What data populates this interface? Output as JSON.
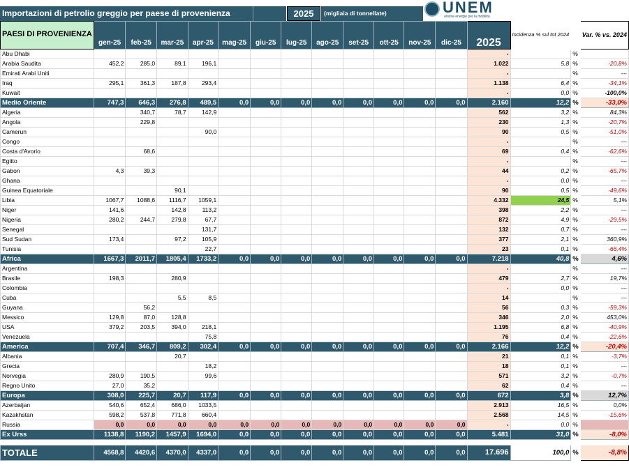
{
  "title": "Importazioni di petrolio greggio per paese di provenienza",
  "year": "2025",
  "unit": "(migliaia di tonnellate)",
  "logo": {
    "text": "UNEM",
    "sub": "unione energie per la mobilità"
  },
  "headers": {
    "country": "PAESI DI PROVENIENZA",
    "months": [
      "gen-25",
      "feb-25",
      "mar-25",
      "apr-25",
      "mag-25",
      "giu-25",
      "lug-25",
      "ago-25",
      "set-25",
      "ott-25",
      "nov-25",
      "dic-25"
    ],
    "total": "2025",
    "incidence": "Incidenza % sul tot 2024",
    "variation": "Var. % vs. 2024"
  },
  "pct_sign": "%",
  "groups": [
    {
      "rows": [
        {
          "name": "Abu Dhabi",
          "m": [
            "",
            "",
            "",
            "",
            "",
            "",
            "",
            "",
            "",
            "",
            "",
            ""
          ],
          "tot": "-",
          "inc": "",
          "var": ""
        },
        {
          "name": "Arabia Saudita",
          "m": [
            "452,2",
            "285,0",
            "89,1",
            "196,1",
            "",
            "",
            "",
            "",
            "",
            "",
            "",
            ""
          ],
          "tot": "1.022",
          "inc": "5,8",
          "var": "-20,8%"
        },
        {
          "name": "Emirati Arabi Uniti",
          "m": [
            "",
            "",
            "",
            "",
            "",
            "",
            "",
            "",
            "",
            "",
            "",
            ""
          ],
          "tot": "-",
          "inc": "",
          "var": "---"
        },
        {
          "name": "Iraq",
          "m": [
            "295,1",
            "361,3",
            "187,8",
            "293,4",
            "",
            "",
            "",
            "",
            "",
            "",
            "",
            ""
          ],
          "tot": "1.138",
          "inc": "6,4",
          "var": "-34,1%"
        },
        {
          "name": "Kuwait",
          "m": [
            "",
            "",
            "",
            "",
            "",
            "",
            "",
            "",
            "",
            "",
            "",
            ""
          ],
          "tot": "-",
          "inc": "0,0",
          "var": "-100,0%"
        }
      ],
      "total": {
        "name": "Medio Oriente",
        "m": [
          "747,3",
          "646,3",
          "276,8",
          "489,5",
          "0,0",
          "0,0",
          "0,0",
          "0,0",
          "0,0",
          "0,0",
          "0,0",
          "0,0"
        ],
        "tot": "2.160",
        "inc": "12,2",
        "var": "-33,0%"
      }
    },
    {
      "rows": [
        {
          "name": "Algeria",
          "m": [
            "",
            "340,7",
            "78,7",
            "142,9",
            "",
            "",
            "",
            "",
            "",
            "",
            "",
            ""
          ],
          "tot": "562",
          "inc": "3,2",
          "var": "84,3%"
        },
        {
          "name": "Angola",
          "m": [
            "",
            "229,8",
            "",
            "",
            "",
            "",
            "",
            "",
            "",
            "",
            "",
            ""
          ],
          "tot": "230",
          "inc": "1,3",
          "var": "-20,7%"
        },
        {
          "name": "Camerun",
          "m": [
            "",
            "",
            "",
            "90,0",
            "",
            "",
            "",
            "",
            "",
            "",
            "",
            ""
          ],
          "tot": "90",
          "inc": "0,5",
          "var": "-51,0%"
        },
        {
          "name": "Congo",
          "m": [
            "",
            "",
            "",
            "",
            "",
            "",
            "",
            "",
            "",
            "",
            "",
            ""
          ],
          "tot": "-",
          "inc": "",
          "var": "---"
        },
        {
          "name": "Costa d'Avorio",
          "m": [
            "",
            "68,6",
            "",
            "",
            "",
            "",
            "",
            "",
            "",
            "",
            "",
            ""
          ],
          "tot": "69",
          "inc": "0,4",
          "var": "-62,6%"
        },
        {
          "name": "Egitto",
          "m": [
            "",
            "",
            "",
            "",
            "",
            "",
            "",
            "",
            "",
            "",
            "",
            ""
          ],
          "tot": "-",
          "inc": "",
          "var": "---"
        },
        {
          "name": "Gabon",
          "m": [
            "4,3",
            "39,3",
            "",
            "",
            "",
            "",
            "",
            "",
            "",
            "",
            "",
            ""
          ],
          "tot": "44",
          "inc": "0,2",
          "var": "-65,7%"
        },
        {
          "name": "Ghana",
          "m": [
            "",
            "",
            "",
            "",
            "",
            "",
            "",
            "",
            "",
            "",
            "",
            ""
          ],
          "tot": "-",
          "inc": "0,0",
          "var": "---"
        },
        {
          "name": "Guinea Equatoriale",
          "m": [
            "",
            "",
            "90,1",
            "",
            "",
            "",
            "",
            "",
            "",
            "",
            "",
            ""
          ],
          "tot": "90",
          "inc": "0,5",
          "var": "-49,6%"
        },
        {
          "name": "Libia",
          "m": [
            "1067,7",
            "1088,6",
            "1116,7",
            "1059,1",
            "",
            "",
            "",
            "",
            "",
            "",
            "",
            ""
          ],
          "tot": "4.332",
          "inc": "24,5",
          "var": "5,1%",
          "highlight": true
        },
        {
          "name": "Niger",
          "m": [
            "141,6",
            "",
            "142,8",
            "113,2",
            "",
            "",
            "",
            "",
            "",
            "",
            "",
            ""
          ],
          "tot": "398",
          "inc": "2,2",
          "var": "---"
        },
        {
          "name": "Nigeria",
          "m": [
            "280,2",
            "244,7",
            "279,8",
            "67,7",
            "",
            "",
            "",
            "",
            "",
            "",
            "",
            ""
          ],
          "tot": "872",
          "inc": "4,9",
          "var": "-29,5%"
        },
        {
          "name": "Senegal",
          "m": [
            "",
            "",
            "",
            "131,7",
            "",
            "",
            "",
            "",
            "",
            "",
            "",
            ""
          ],
          "tot": "132",
          "inc": "0,7",
          "var": "---"
        },
        {
          "name": "Sud Sudan",
          "m": [
            "173,4",
            "",
            "97,2",
            "105,9",
            "",
            "",
            "",
            "",
            "",
            "",
            "",
            ""
          ],
          "tot": "377",
          "inc": "2,1",
          "var": "360,9%"
        },
        {
          "name": "Tunisia",
          "m": [
            "",
            "",
            "",
            "22,7",
            "",
            "",
            "",
            "",
            "",
            "",
            "",
            ""
          ],
          "tot": "23",
          "inc": "0,1",
          "var": "-66,4%"
        }
      ],
      "total": {
        "name": "Africa",
        "m": [
          "1667,3",
          "2011,7",
          "1805,4",
          "1733,2",
          "0,0",
          "0,0",
          "0,0",
          "0,0",
          "0,0",
          "0,0",
          "0,0",
          "0,0"
        ],
        "tot": "7.218",
        "inc": "40,8",
        "var": "4,6%"
      }
    },
    {
      "rows": [
        {
          "name": "Argentina",
          "m": [
            "",
            "",
            "",
            "",
            "",
            "",
            "",
            "",
            "",
            "",
            "",
            ""
          ],
          "tot": "-",
          "inc": "",
          "var": "---"
        },
        {
          "name": "Brasile",
          "m": [
            "198,3",
            "",
            "280,9",
            "",
            "",
            "",
            "",
            "",
            "",
            "",
            "",
            ""
          ],
          "tot": "479",
          "inc": "2,7",
          "var": "19,7%"
        },
        {
          "name": "Colombia",
          "m": [
            "",
            "",
            "",
            "",
            "",
            "",
            "",
            "",
            "",
            "",
            "",
            ""
          ],
          "tot": "-",
          "inc": "0,0",
          "var": "---"
        },
        {
          "name": "Cuba",
          "m": [
            "",
            "",
            "5,5",
            "8,5",
            "",
            "",
            "",
            "",
            "",
            "",
            "",
            ""
          ],
          "tot": "14",
          "inc": "",
          "var": "---"
        },
        {
          "name": "Guyana",
          "m": [
            "",
            "56,2",
            "",
            "",
            "",
            "",
            "",
            "",
            "",
            "",
            "",
            ""
          ],
          "tot": "56",
          "inc": "0,3",
          "var": "-59,3%"
        },
        {
          "name": "Messico",
          "m": [
            "129,8",
            "87,0",
            "128,8",
            "",
            "",
            "",
            "",
            "",
            "",
            "",
            "",
            ""
          ],
          "tot": "346",
          "inc": "2,0",
          "var": "453,0%"
        },
        {
          "name": "USA",
          "m": [
            "379,2",
            "203,5",
            "394,0",
            "218,1",
            "",
            "",
            "",
            "",
            "",
            "",
            "",
            ""
          ],
          "tot": "1.195",
          "inc": "6,8",
          "var": "-40,9%"
        },
        {
          "name": "Venezuela",
          "m": [
            "",
            "",
            "",
            "75,8",
            "",
            "",
            "",
            "",
            "",
            "",
            "",
            ""
          ],
          "tot": "76",
          "inc": "0,4",
          "var": "-22,6%"
        }
      ],
      "total": {
        "name": "America",
        "m": [
          "707,4",
          "346,7",
          "809,2",
          "302,4",
          "0,0",
          "0,0",
          "0,0",
          "0,0",
          "0,0",
          "0,0",
          "0,0",
          "0,0"
        ],
        "tot": "2.166",
        "inc": "12,2",
        "var": "-20,4%"
      }
    },
    {
      "rows": [
        {
          "name": "Albania",
          "m": [
            "",
            "",
            "20,7",
            "",
            "",
            "",
            "",
            "",
            "",
            "",
            "",
            ""
          ],
          "tot": "21",
          "inc": "0,1",
          "var": "-3,7%"
        },
        {
          "name": "Grecia",
          "m": [
            "",
            "",
            "",
            "18,2",
            "",
            "",
            "",
            "",
            "",
            "",
            "",
            ""
          ],
          "tot": "18",
          "inc": "0,1",
          "var": "---"
        },
        {
          "name": "Norvegia",
          "m": [
            "280,9",
            "190,5",
            "",
            "99,6",
            "",
            "",
            "",
            "",
            "",
            "",
            "",
            ""
          ],
          "tot": "571",
          "inc": "3,2",
          "var": "-0,7%"
        },
        {
          "name": "Regno Unito",
          "m": [
            "27,0",
            "35,2",
            "",
            "",
            "",
            "",
            "",
            "",
            "",
            "",
            "",
            ""
          ],
          "tot": "62",
          "inc": "0,4",
          "var": "---"
        }
      ],
      "total": {
        "name": "Europa",
        "m": [
          "308,0",
          "225,7",
          "20,7",
          "117,9",
          "0,0",
          "0,0",
          "0,0",
          "0,0",
          "0,0",
          "0,0",
          "0,0",
          "0,0"
        ],
        "tot": "672",
        "inc": "3,8",
        "var": "12,7%"
      }
    },
    {
      "rows": [
        {
          "name": "Azerbaijan",
          "m": [
            "540,6",
            "652,4",
            "686,0",
            "1033,5",
            "",
            "",
            "",
            "",
            "",
            "",
            "",
            ""
          ],
          "tot": "2.913",
          "inc": "16,5",
          "var": "0,0%"
        },
        {
          "name": "Kazakhstan",
          "m": [
            "598,2",
            "537,8",
            "771,8",
            "660,4",
            "",
            "",
            "",
            "",
            "",
            "",
            "",
            ""
          ],
          "tot": "2.568",
          "inc": "14,5",
          "var": "-15,6%"
        },
        {
          "name": "Russia",
          "m": [
            "0,0",
            "0,0",
            "0,0",
            "0,0",
            "0,0",
            "0,0",
            "0,0",
            "0,0",
            "0,0",
            "0,0",
            "0,0",
            "0,0"
          ],
          "tot": "-",
          "inc": "0,0",
          "var": "",
          "russia": true
        }
      ],
      "total": {
        "name": "Ex Urss",
        "m": [
          "1138,8",
          "1190,2",
          "1457,9",
          "1694,0",
          "0,0",
          "0,0",
          "0,0",
          "0,0",
          "0,0",
          "0,0",
          "0,0",
          "0,0"
        ],
        "tot": "5.481",
        "inc": "31,0",
        "var": "-8,0%"
      }
    }
  ],
  "grand_total": {
    "name": "TOTALE",
    "m": [
      "4568,8",
      "4420,6",
      "4370,0",
      "4337,0",
      "0,0",
      "0,0",
      "0,0",
      "0,0",
      "0,0",
      "0,0",
      "0,0",
      "0,0"
    ],
    "tot": "17.696",
    "inc": "100,0",
    "var": "-8,8%"
  }
}
